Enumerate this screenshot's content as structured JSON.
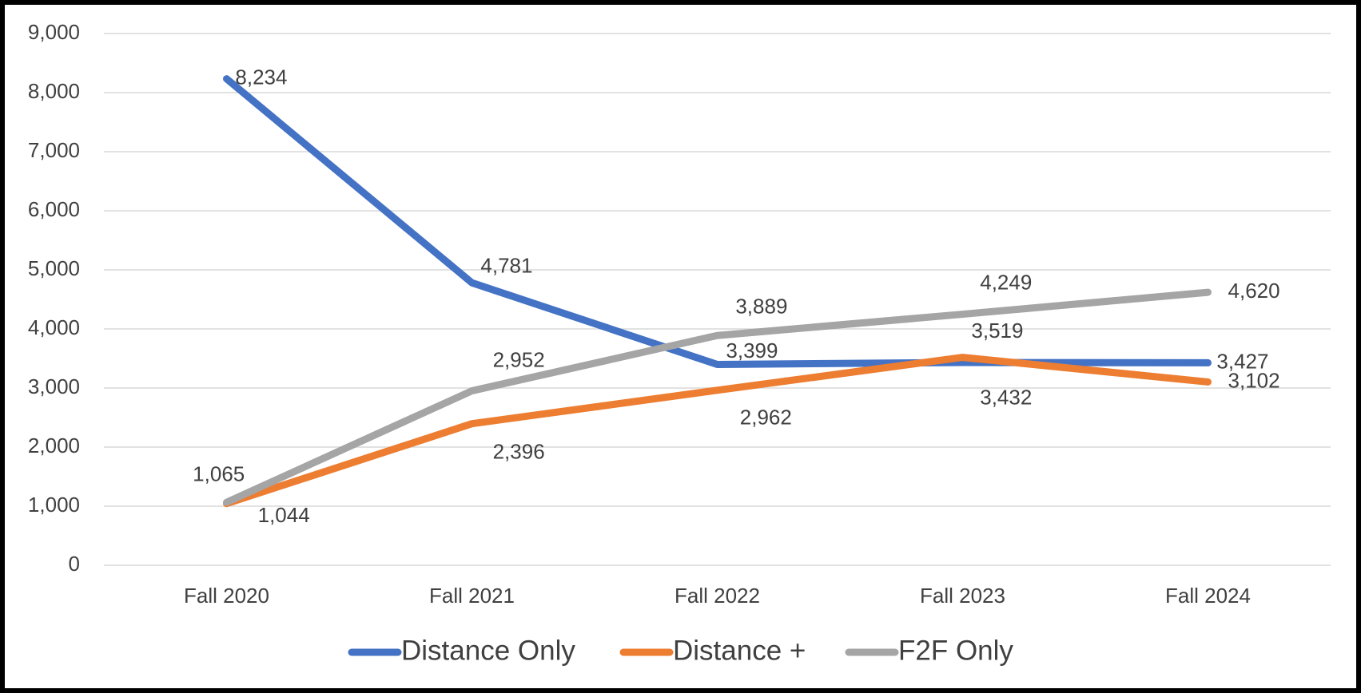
{
  "chart_data": {
    "type": "line",
    "categories": [
      "Fall 2020",
      "Fall 2021",
      "Fall 2022",
      "Fall 2023",
      "Fall 2024"
    ],
    "series": [
      {
        "name": "Distance Only",
        "color": "#4472c4",
        "values": [
          8234,
          4781,
          3399,
          3432,
          3427
        ],
        "value_labels": [
          "8,234",
          "4,781",
          "3,399",
          "3,432",
          "3,427"
        ]
      },
      {
        "name": "Distance +",
        "color": "#ed7d31",
        "values": [
          1044,
          2396,
          2962,
          3519,
          3102
        ],
        "value_labels": [
          "1,044",
          "2,396",
          "2,962",
          "3,519",
          "3,102"
        ]
      },
      {
        "name": "F2F Only",
        "color": "#a5a5a5",
        "values": [
          1065,
          2952,
          3889,
          4249,
          4620
        ],
        "value_labels": [
          "1,065",
          "2,952",
          "3,889",
          "4,249",
          "4,620"
        ]
      }
    ],
    "ylim": [
      0,
      9000
    ],
    "yticks": [
      0,
      {
        "value": 1000,
        "label": "1,000"
      },
      {
        "value": 2000,
        "label": "2,000"
      },
      {
        "value": 3000,
        "label": "3,000"
      },
      {
        "value": 4000,
        "label": "4,000"
      },
      {
        "value": 5000,
        "label": "5,000"
      },
      {
        "value": 6000,
        "label": "6,000"
      },
      {
        "value": 7000,
        "label": "7,000"
      },
      {
        "value": 8000,
        "label": "8,000"
      },
      {
        "value": 9000,
        "label": "9,000"
      }
    ],
    "grid": true,
    "legend": "bottom"
  }
}
